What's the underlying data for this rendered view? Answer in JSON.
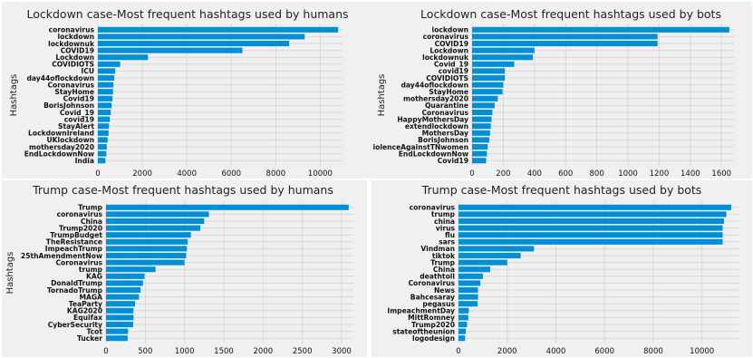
{
  "chart_data": [
    {
      "type": "bar",
      "orientation": "horizontal",
      "title": "Lockdown case-Most frequent hashtags used by humans",
      "ylabel": "Hashtags",
      "xlabel": "",
      "xlim": [
        0,
        11000
      ],
      "xticks": [
        0,
        2000,
        4000,
        6000,
        8000,
        10000
      ],
      "grid": true,
      "categories": [
        "coronavirus",
        "lockdown",
        "lockdownuk",
        "COVID19",
        "Lockdown",
        "COVIDIOTS",
        "ICU",
        "day44oflockdown",
        "Coronavirus",
        "StayHome",
        "Covid19",
        "BorisJohnson",
        "Covid_19",
        "covid19",
        "StayAlert",
        "LockdownIreland",
        "UKlockdown",
        "mothersday2020",
        "EndLockdownNow",
        "India"
      ],
      "values": [
        10800,
        9300,
        8600,
        6500,
        2250,
        1000,
        780,
        740,
        700,
        680,
        660,
        620,
        580,
        540,
        500,
        480,
        440,
        400,
        380,
        340
      ]
    },
    {
      "type": "bar",
      "orientation": "horizontal",
      "title": "Lockdown case-Most frequent hashtags used by bots",
      "ylabel": "Hashtags",
      "xlabel": "",
      "xlim": [
        0,
        1680
      ],
      "xticks": [
        0,
        200,
        400,
        600,
        800,
        1000,
        1200,
        1400,
        1600
      ],
      "grid": true,
      "categories": [
        "lockdown",
        "coronavirus",
        "COVID19",
        "Lockdown",
        "lockdownuk",
        "Covid_19",
        "covid19",
        "COVIDIOTS",
        "day44oflockdown",
        "StayHome",
        "mothersday2020",
        "Quarantine",
        "Coronavirus",
        "HappyMothersDay",
        "extendlockdown",
        "MothersDay",
        "BorisJohnson",
        "ViolenceAgainstTNwomen",
        "EndLockdownNow",
        "Covid19"
      ],
      "values": [
        1650,
        1190,
        1190,
        400,
        390,
        270,
        210,
        210,
        200,
        195,
        165,
        145,
        130,
        125,
        120,
        115,
        110,
        100,
        95,
        90
      ]
    },
    {
      "type": "bar",
      "orientation": "horizontal",
      "title": "Trump case-Most frequent hashtags used by humans",
      "ylabel": "Hashtags",
      "xlabel": "",
      "xlim": [
        0,
        3150
      ],
      "xticks": [
        0,
        500,
        1000,
        1500,
        2000,
        2500,
        3000
      ],
      "grid": true,
      "categories": [
        "Trump",
        "coronavirus",
        "China",
        "Trump2020",
        "TrumpBudget",
        "TheResistance",
        "ImpeachTrump",
        "25thAmendmentNow",
        "Coronavirus",
        "trump",
        "KAG",
        "DonaldTrump",
        "TornadoTrump",
        "MAGA",
        "TeaParty",
        "KAG2020",
        "Equifax",
        "CyberSecurity",
        "Tcot",
        "Tucker"
      ],
      "values": [
        3090,
        1310,
        1250,
        1200,
        1080,
        1040,
        1030,
        1020,
        1000,
        630,
        490,
        470,
        440,
        420,
        370,
        350,
        350,
        345,
        280,
        275
      ]
    },
    {
      "type": "bar",
      "orientation": "horizontal",
      "title": "Trump case-Most frequent hashtags used by bots",
      "ylabel": "",
      "xlabel": "",
      "xlim": [
        0,
        11500
      ],
      "xticks": [
        0,
        2000,
        4000,
        6000,
        8000,
        10000
      ],
      "grid": true,
      "categories": [
        "coronavirus",
        "trump",
        "china",
        "virus",
        "flu",
        "sars",
        "Vindman",
        "tiktok",
        "Trump",
        "China",
        "deathtoll",
        "Coronavirus",
        "News",
        "Bahcesaray",
        "pegasus",
        "ImpeachmentDay",
        "MittRomney",
        "Trump2020",
        "stateoftheunion",
        "logodesign"
      ],
      "values": [
        11200,
        11000,
        10900,
        10850,
        10850,
        10850,
        3100,
        2550,
        2000,
        1300,
        1000,
        900,
        800,
        800,
        780,
        420,
        400,
        350,
        300,
        270
      ]
    }
  ]
}
